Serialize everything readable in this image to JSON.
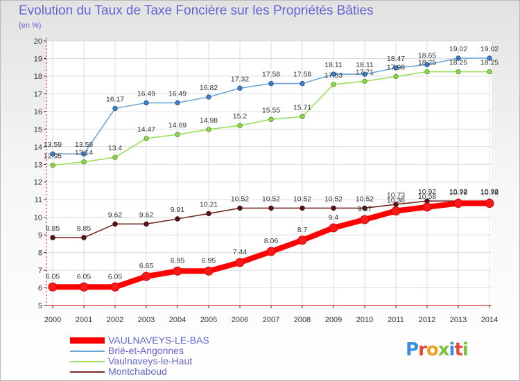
{
  "title": "Evolution du Taux de Taxe Foncière sur les Propriétés Bâties",
  "unit": "(en %)",
  "logo": "Proxiti",
  "colors": {
    "title": "#6464d2",
    "vaulnaveys_le_bas": "#ff0000",
    "brie_et_angonnes": "#6ea6d8",
    "vaulnaveys_le_haut": "#99e05a",
    "montchaboud": "#7a2a2a",
    "axis": "#c80000"
  },
  "chart_data": {
    "type": "line",
    "title": "Evolution du Taux de Taxe Foncière sur les Propriétés Bâties",
    "ylabel": "(en %)",
    "xlabel": "",
    "ylim": [
      5,
      20
    ],
    "yticks": [
      5,
      6,
      7,
      8,
      9,
      10,
      11,
      12,
      13,
      14,
      15,
      16,
      17,
      18,
      19,
      20
    ],
    "categories": [
      "2000",
      "2001",
      "2002",
      "2003",
      "2004",
      "2005",
      "2006",
      "2007",
      "2008",
      "2009",
      "2010",
      "2011",
      "2012",
      "2013",
      "2014"
    ],
    "series": [
      {
        "name": "Brié-et-Angonnes",
        "values": [
          13.59,
          13.59,
          16.17,
          16.49,
          16.49,
          16.82,
          17.32,
          17.58,
          17.58,
          18.11,
          18.11,
          18.47,
          18.65,
          19.02,
          19.02
        ],
        "labels": [
          "13.59",
          "13.59",
          "16.17",
          "16.49",
          "16.49",
          "16.82",
          "17.32",
          "17.58",
          "17.58",
          "18.11",
          "18.11",
          "18.47",
          "18.65",
          "19.02",
          "19.02"
        ]
      },
      {
        "name": "Vaulnaveys-le-Haut",
        "values": [
          12.95,
          13.14,
          13.4,
          14.47,
          14.69,
          14.98,
          15.2,
          15.55,
          15.71,
          17.53,
          17.71,
          17.98,
          18.25,
          18.25,
          18.25
        ],
        "labels": [
          "12.95",
          "13.14",
          "13.4",
          "14.47",
          "14.69",
          "14.98",
          "15.2",
          "15.55",
          "15.71",
          "17.53",
          "17.71",
          "17.98",
          "18.25",
          "18.25",
          "18.25"
        ]
      },
      {
        "name": "Montchaboud",
        "values": [
          8.85,
          8.85,
          9.62,
          9.62,
          9.91,
          10.21,
          10.52,
          10.52,
          10.52,
          10.52,
          10.52,
          10.73,
          10.92,
          10.92,
          10.92
        ],
        "labels": [
          "8.85",
          "8.85",
          "9.62",
          "9.62",
          "9.91",
          "10.21",
          "10.52",
          "10.52",
          "10.52",
          "10.52",
          "10.52",
          "10.73",
          "10.92",
          "10.92",
          "10.92"
        ]
      },
      {
        "name": "VAULNAVEYS-LE-BAS",
        "values": [
          6.05,
          6.05,
          6.05,
          6.65,
          6.95,
          6.95,
          7.44,
          8.06,
          8.7,
          9.4,
          9.87,
          10.36,
          10.58,
          10.79,
          10.79
        ],
        "labels": [
          "6.05",
          "6.05",
          "6.05",
          "6.65",
          "6.95",
          "6.95",
          "7.44",
          "8.06",
          "8.7",
          "9.4",
          "9.87",
          "10.36",
          "10.58",
          "10.79",
          "10.79"
        ]
      }
    ],
    "legend": [
      "VAULNAVEYS-LE-BAS",
      "Brié-et-Angonnes",
      "Vaulnaveys-le-Haut",
      "Montchaboud"
    ]
  }
}
